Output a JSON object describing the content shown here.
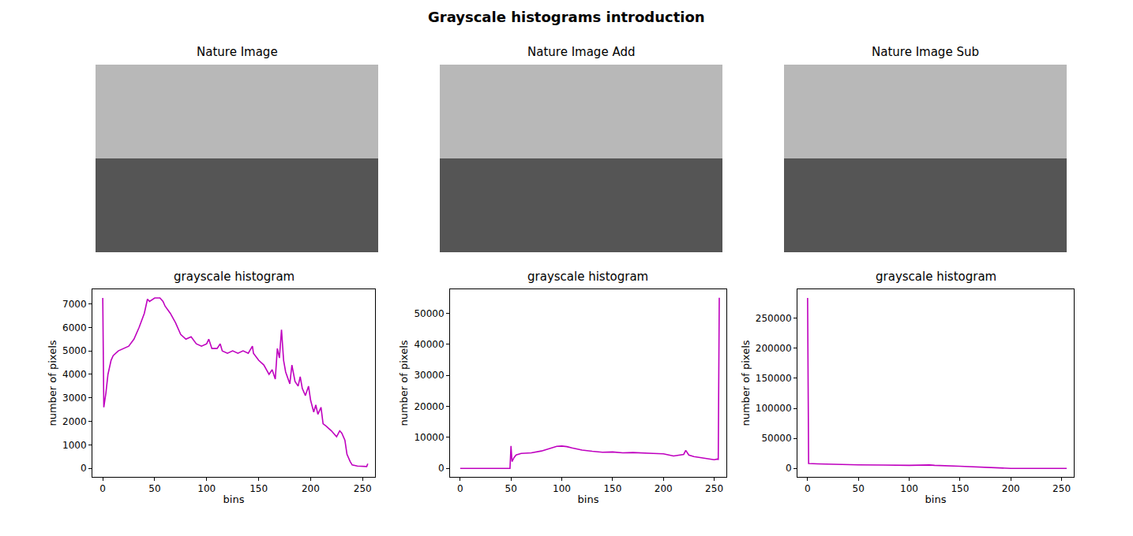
{
  "title": "Grayscale histograms introduction",
  "images": [
    {
      "title": "Nature Image"
    },
    {
      "title": "Nature Image Add"
    },
    {
      "title": "Nature Image Sub"
    }
  ],
  "chart_data": [
    {
      "type": "line",
      "title": "grayscale histogram",
      "xlabel": "bins",
      "ylabel": "number of pixels",
      "color": "#bf00bf",
      "grid": false,
      "x": [
        0,
        1,
        3,
        5,
        8,
        10,
        15,
        20,
        25,
        30,
        35,
        40,
        43,
        45,
        50,
        55,
        58,
        60,
        65,
        70,
        75,
        80,
        85,
        90,
        95,
        100,
        102,
        105,
        110,
        113,
        115,
        120,
        125,
        130,
        135,
        140,
        144,
        145,
        150,
        155,
        160,
        163,
        166,
        168,
        170,
        172,
        174,
        176,
        180,
        182,
        185,
        188,
        190,
        192,
        195,
        198,
        200,
        203,
        205,
        207,
        210,
        212,
        215,
        220,
        225,
        228,
        230,
        233,
        235,
        238,
        240,
        245,
        250,
        254,
        255
      ],
      "values": [
        7250,
        2600,
        3200,
        4000,
        4600,
        4800,
        5000,
        5100,
        5200,
        5500,
        6000,
        6600,
        7200,
        7100,
        7250,
        7250,
        7100,
        6900,
        6600,
        6200,
        5700,
        5500,
        5600,
        5300,
        5200,
        5300,
        5500,
        5100,
        5100,
        5300,
        5000,
        4900,
        5000,
        4900,
        5000,
        4900,
        5200,
        4900,
        4600,
        4400,
        4000,
        4200,
        3800,
        5100,
        4700,
        5900,
        4600,
        4100,
        3600,
        4400,
        3700,
        3500,
        3900,
        3400,
        3100,
        3500,
        2900,
        2400,
        2700,
        2300,
        2600,
        1900,
        1800,
        1600,
        1350,
        1600,
        1500,
        1200,
        600,
        300,
        150,
        100,
        80,
        80,
        200
      ],
      "xlim": [
        -10,
        262
      ],
      "xticks": [
        0,
        50,
        100,
        150,
        200,
        250
      ],
      "ylim": [
        -360,
        7620
      ],
      "yticks": [
        0,
        1000,
        2000,
        3000,
        4000,
        5000,
        6000,
        7000
      ]
    },
    {
      "type": "line",
      "title": "grayscale histogram",
      "xlabel": "bins",
      "ylabel": "number of pixels",
      "color": "#bf00bf",
      "grid": false,
      "x": [
        0,
        10,
        20,
        30,
        40,
        49,
        50,
        51,
        53,
        55,
        60,
        70,
        80,
        90,
        95,
        100,
        105,
        110,
        120,
        130,
        140,
        150,
        160,
        170,
        180,
        190,
        200,
        210,
        220,
        222,
        225,
        230,
        240,
        250,
        253,
        254,
        255
      ],
      "values": [
        0,
        0,
        0,
        0,
        0,
        0,
        7200,
        2200,
        3500,
        4300,
        4800,
        5000,
        5600,
        6500,
        7100,
        7200,
        7000,
        6600,
        5900,
        5500,
        5200,
        5300,
        5000,
        5100,
        4900,
        4800,
        4700,
        4000,
        4500,
        5800,
        4300,
        3800,
        3300,
        2800,
        3000,
        2900,
        55000
      ],
      "xlim": [
        -10,
        262
      ],
      "xticks": [
        0,
        50,
        100,
        150,
        200,
        250
      ],
      "ylim": [
        -2750,
        57750
      ],
      "yticks": [
        0,
        10000,
        20000,
        30000,
        40000,
        50000
      ]
    },
    {
      "type": "line",
      "title": "grayscale histogram",
      "xlabel": "bins",
      "ylabel": "number of pixels",
      "color": "#bf00bf",
      "grid": false,
      "x": [
        0,
        1,
        10,
        25,
        50,
        75,
        100,
        120,
        125,
        150,
        175,
        190,
        200,
        225,
        255
      ],
      "values": [
        284000,
        8000,
        7500,
        6800,
        5800,
        5500,
        5000,
        5700,
        5000,
        3500,
        2000,
        500,
        0,
        0,
        0
      ],
      "xlim": [
        -10,
        262
      ],
      "xticks": [
        0,
        50,
        100,
        150,
        200,
        250
      ],
      "ylim": [
        -14200,
        298400
      ],
      "yticks": [
        0,
        50000,
        100000,
        150000,
        200000,
        250000
      ]
    }
  ]
}
